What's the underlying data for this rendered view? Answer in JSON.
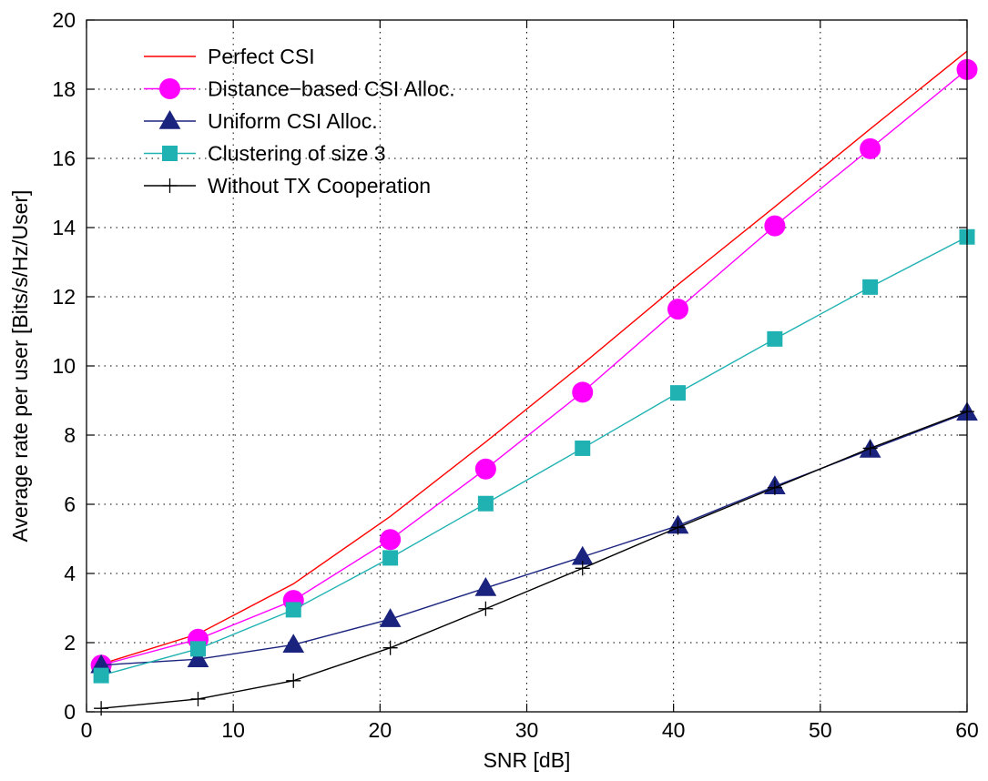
{
  "chart_data": {
    "type": "line",
    "title": "",
    "xlabel": "SNR [dB]",
    "ylabel": "Average rate per user [Bits/s/Hz/User]",
    "xlim": [
      0,
      60
    ],
    "ylim": [
      0,
      20
    ],
    "xticks": [
      0,
      10,
      20,
      30,
      40,
      50,
      60
    ],
    "yticks": [
      0,
      2,
      4,
      6,
      8,
      10,
      12,
      14,
      16,
      18,
      20
    ],
    "grid": true,
    "legend_position": "top-left",
    "series": [
      {
        "name": "Perfect CSI",
        "color": "#ff0000",
        "marker": "none",
        "x": [
          1,
          7.6,
          14.1,
          20.7,
          27.2,
          33.8,
          40.3,
          46.9,
          53.4,
          60
        ],
        "y": [
          1.38,
          2.25,
          3.7,
          5.65,
          7.8,
          10.05,
          12.35,
          14.6,
          16.85,
          19.1
        ]
      },
      {
        "name": "Distance−based CSI Alloc.",
        "color": "#ff00ff",
        "marker": "circle",
        "x": [
          1,
          7.6,
          14.1,
          20.7,
          27.2,
          33.8,
          40.3,
          46.9,
          53.4,
          60
        ],
        "y": [
          1.35,
          2.1,
          3.22,
          4.98,
          7.02,
          9.24,
          11.64,
          14.05,
          16.28,
          18.57
        ]
      },
      {
        "name": "Uniform  CSI Alloc.",
        "color": "#1a237e",
        "marker": "triangle",
        "x": [
          1,
          7.6,
          14.1,
          20.7,
          27.2,
          33.8,
          40.3,
          46.9,
          53.4,
          60
        ],
        "y": [
          1.35,
          1.52,
          1.94,
          2.68,
          3.58,
          4.48,
          5.38,
          6.52,
          7.58,
          8.65
        ]
      },
      {
        "name": "Clustering of size 3",
        "color": "#20b2b2",
        "marker": "square",
        "x": [
          1,
          7.6,
          14.1,
          20.7,
          27.2,
          33.8,
          40.3,
          46.9,
          53.4,
          60
        ],
        "y": [
          1.05,
          1.82,
          2.95,
          4.45,
          6.02,
          7.62,
          9.22,
          10.78,
          12.28,
          13.73
        ]
      },
      {
        "name": "Without TX Cooperation",
        "color": "#000000",
        "marker": "plus",
        "x": [
          1,
          7.6,
          14.1,
          20.7,
          27.2,
          33.8,
          40.3,
          46.9,
          53.4,
          60
        ],
        "y": [
          0.1,
          0.37,
          0.9,
          1.85,
          2.98,
          4.15,
          5.33,
          6.48,
          7.62,
          8.68
        ]
      }
    ]
  }
}
